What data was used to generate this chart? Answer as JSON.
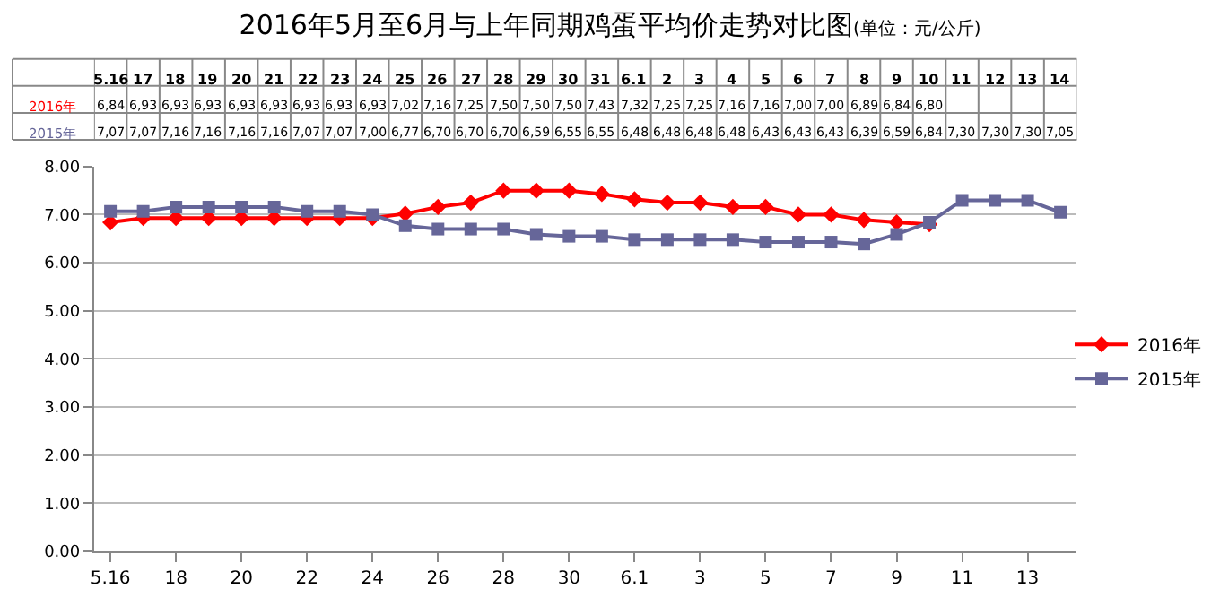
{
  "chart_data": {
    "type": "line",
    "title": "2016年5月至6月与上年同期鸡蛋平均价走势对比图",
    "subtitle": "(单位：元/公斤)",
    "categories": [
      "5.16",
      "17",
      "18",
      "19",
      "20",
      "21",
      "22",
      "23",
      "24",
      "25",
      "26",
      "27",
      "28",
      "29",
      "30",
      "31",
      "6.1",
      "2",
      "3",
      "4",
      "5",
      "6",
      "7",
      "8",
      "9",
      "10",
      "11",
      "12",
      "13",
      "14"
    ],
    "series": [
      {
        "name": "2016年",
        "color": "#ff0000",
        "marker": "diamond",
        "values": [
          6.84,
          6.93,
          6.93,
          6.93,
          6.93,
          6.93,
          6.93,
          6.93,
          6.93,
          7.02,
          7.16,
          7.25,
          7.5,
          7.5,
          7.5,
          7.43,
          7.32,
          7.25,
          7.25,
          7.16,
          7.16,
          7.0,
          7.0,
          6.89,
          6.84,
          6.8,
          null,
          null,
          null,
          null
        ],
        "value_labels": [
          "6,84",
          "6,93",
          "6,93",
          "6,93",
          "6,93",
          "6,93",
          "6,93",
          "6,93",
          "6,93",
          "7,02",
          "7,16",
          "7,25",
          "7,50",
          "7,50",
          "7,50",
          "7,43",
          "7,32",
          "7,25",
          "7,25",
          "7,16",
          "7,16",
          "7,00",
          "7,00",
          "6,89",
          "6,84",
          "6,80",
          null,
          null,
          null,
          null
        ]
      },
      {
        "name": "2015年",
        "color": "#666699",
        "marker": "square",
        "values": [
          7.07,
          7.07,
          7.16,
          7.16,
          7.16,
          7.16,
          7.07,
          7.07,
          7.0,
          6.77,
          6.7,
          6.7,
          6.7,
          6.59,
          6.55,
          6.55,
          6.48,
          6.48,
          6.48,
          6.48,
          6.43,
          6.43,
          6.43,
          6.39,
          6.59,
          6.84,
          7.3,
          7.3,
          7.3,
          7.05
        ],
        "value_labels": [
          "7,07",
          "7,07",
          "7,16",
          "7,16",
          "7,16",
          "7,16",
          "7,07",
          "7,07",
          "7,00",
          "6,77",
          "6,70",
          "6,70",
          "6,70",
          "6,59",
          "6,55",
          "6,55",
          "6,48",
          "6,48",
          "6,48",
          "6,48",
          "6,43",
          "6,43",
          "6,43",
          "6,39",
          "6,59",
          "6,84",
          "7,30",
          "7,30",
          "7,30",
          "7,05"
        ]
      }
    ],
    "ylim": [
      0,
      8
    ],
    "yticks": [
      {
        "value": 0,
        "label": "0.00"
      },
      {
        "value": 1,
        "label": "1.00"
      },
      {
        "value": 2,
        "label": "2.00"
      },
      {
        "value": 3,
        "label": "3.00"
      },
      {
        "value": 4,
        "label": "4.00"
      },
      {
        "value": 5,
        "label": "5.00"
      },
      {
        "value": 6,
        "label": "6.00"
      },
      {
        "value": 7,
        "label": "7.00"
      },
      {
        "value": 8,
        "label": "8.00"
      }
    ],
    "grid": "y",
    "legend": "right",
    "line_style": "solid"
  }
}
